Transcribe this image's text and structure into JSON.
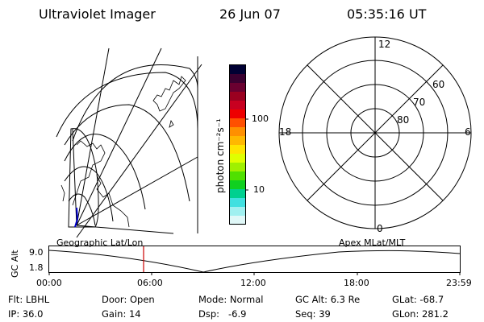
{
  "header": {
    "instrument": "Ultraviolet Imager",
    "date": "26 Jun 07",
    "time": "05:35:16 UT"
  },
  "geo_panel": {
    "label": "Geographic Lat/Lon"
  },
  "colorbar": {
    "unit_label": "photon cm⁻²s⁻¹",
    "tick_labels": [
      "100",
      "10"
    ],
    "colors": [
      "#000033",
      "#3a0030",
      "#6a0030",
      "#9a0020",
      "#c80020",
      "#ee0000",
      "#ff5000",
      "#ff9000",
      "#ffb800",
      "#ffe400",
      "#e0ff00",
      "#a0f000",
      "#50e000",
      "#10d020",
      "#00d090",
      "#40e0e0",
      "#a0f0f0",
      "#e0f8f8"
    ]
  },
  "polar_panel": {
    "label": "Apex MLat/MLT",
    "mlt_labels": {
      "top": "12",
      "right": "6",
      "left": "18",
      "bottom": "0"
    },
    "mlat_labels": [
      "60",
      "70",
      "80"
    ]
  },
  "altitude_plot": {
    "axis_label": "GC Alt",
    "y_ticks": [
      "9.0",
      "1.8"
    ],
    "x_ticks": [
      "00:00",
      "06:00",
      "12:00",
      "18:00",
      "23:59"
    ],
    "current_time_marker_color": "#cc0000"
  },
  "info": {
    "col1": [
      "Flt: LBHL",
      "IP: 36.0"
    ],
    "col2": [
      "Door: Open",
      "Gain: 14"
    ],
    "col3": [
      "Mode: Normal",
      "Dsp:   -6.9"
    ],
    "col4": [
      "GC Alt: 6.3 Re",
      "Seq: 39"
    ],
    "col5": [
      "GLat: -68.7",
      "GLon: 281.2"
    ]
  }
}
